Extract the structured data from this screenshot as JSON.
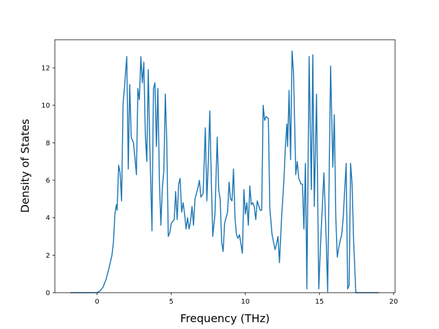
{
  "chart_data": {
    "type": "line",
    "x_label": "Frequency (THz)",
    "y_label": "Density of States",
    "color": "#1f77b4",
    "x": [
      -1.8,
      0,
      0.2,
      0.4,
      0.6,
      0.8,
      1.0,
      1.1,
      1.2,
      1.3,
      1.35,
      1.45,
      1.55,
      1.65,
      1.75,
      1.85,
      1.95,
      2.0,
      2.1,
      2.2,
      2.3,
      2.45,
      2.55,
      2.65,
      2.75,
      2.85,
      2.95,
      3.05,
      3.15,
      3.25,
      3.35,
      3.45,
      3.55,
      3.7,
      3.8,
      3.9,
      4.0,
      4.1,
      4.2,
      4.3,
      4.4,
      4.5,
      4.6,
      4.7,
      4.8,
      4.9,
      5.0,
      5.2,
      5.3,
      5.4,
      5.5,
      5.6,
      5.7,
      5.8,
      5.9,
      6.0,
      6.1,
      6.2,
      6.3,
      6.4,
      6.5,
      6.6,
      6.8,
      6.9,
      7.0,
      7.15,
      7.3,
      7.4,
      7.5,
      7.6,
      7.7,
      7.8,
      7.95,
      8.1,
      8.2,
      8.3,
      8.4,
      8.5,
      8.6,
      8.8,
      8.9,
      9.0,
      9.1,
      9.2,
      9.3,
      9.4,
      9.5,
      9.6,
      9.8,
      9.9,
      10.0,
      10.1,
      10.2,
      10.3,
      10.4,
      10.5,
      10.6,
      10.7,
      10.8,
      11.0,
      11.1,
      11.2,
      11.3,
      11.4,
      11.55,
      11.65,
      11.8,
      12.0,
      12.1,
      12.2,
      12.3,
      12.45,
      12.6,
      12.7,
      12.8,
      12.85,
      12.95,
      13.05,
      13.15,
      13.25,
      13.4,
      13.5,
      13.6,
      13.75,
      13.85,
      13.95,
      14.05,
      14.15,
      14.3,
      14.45,
      14.55,
      14.65,
      14.8,
      14.95,
      15.1,
      15.3,
      15.45,
      15.55,
      15.75,
      15.9,
      16.0,
      16.1,
      16.2,
      16.3,
      16.4,
      16.5,
      16.6,
      16.7,
      16.8,
      16.9,
      17.0,
      17.1,
      17.2,
      17.3,
      17.45,
      19.0
    ],
    "values": [
      0,
      0,
      0.1,
      0.3,
      0.7,
      1.3,
      2.0,
      2.7,
      4.2,
      4.7,
      4.4,
      6.8,
      6.4,
      4.9,
      10.1,
      11.0,
      12.1,
      12.6,
      6.6,
      11.1,
      8.3,
      8.0,
      7.2,
      6.3,
      10.9,
      10.3,
      12.6,
      11.2,
      12.3,
      8.5,
      7.0,
      11.9,
      8.0,
      3.3,
      10.9,
      11.2,
      7.8,
      10.9,
      6.0,
      3.6,
      5.6,
      6.5,
      10.6,
      8.0,
      3.0,
      3.2,
      3.7,
      3.9,
      5.4,
      3.9,
      5.8,
      6.1,
      4.3,
      4.8,
      4.2,
      3.4,
      4.0,
      3.4,
      3.8,
      4.6,
      3.6,
      5.0,
      5.6,
      6.0,
      5.1,
      5.3,
      8.8,
      4.9,
      7.0,
      9.7,
      6.1,
      3.0,
      4.2,
      8.3,
      5.5,
      5.0,
      2.7,
      2.2,
      3.7,
      4.3,
      5.9,
      5.0,
      4.9,
      6.6,
      4.0,
      3.1,
      2.9,
      3.1,
      2.1,
      5.5,
      4.2,
      4.8,
      3.6,
      5.7,
      4.7,
      4.8,
      4.6,
      3.9,
      4.9,
      4.4,
      4.4,
      10.0,
      9.2,
      9.4,
      9.3,
      4.5,
      3.1,
      2.3,
      2.6,
      3.0,
      1.6,
      4.1,
      6.0,
      7.8,
      9.0,
      7.8,
      10.8,
      7.1,
      12.9,
      11.7,
      6.3,
      7.0,
      6.1,
      5.8,
      5.8,
      3.4,
      6.9,
      0.2,
      12.6,
      5.5,
      12.7,
      4.6,
      10.6,
      0.2,
      3.1,
      6.4,
      2.9,
      0.05,
      12.1,
      6.7,
      9.5,
      4.0,
      1.9,
      2.4,
      2.8,
      3.1,
      4.0,
      5.5,
      6.9,
      0.2,
      0.4,
      6.9,
      5.8,
      2.8,
      0,
      0
    ],
    "xlim": [
      -2.85,
      20.1
    ],
    "ylim": [
      0,
      13.5
    ],
    "xticks": [
      0,
      5,
      10,
      15,
      20
    ],
    "yticks": [
      0,
      2,
      4,
      6,
      8,
      10,
      12
    ]
  }
}
